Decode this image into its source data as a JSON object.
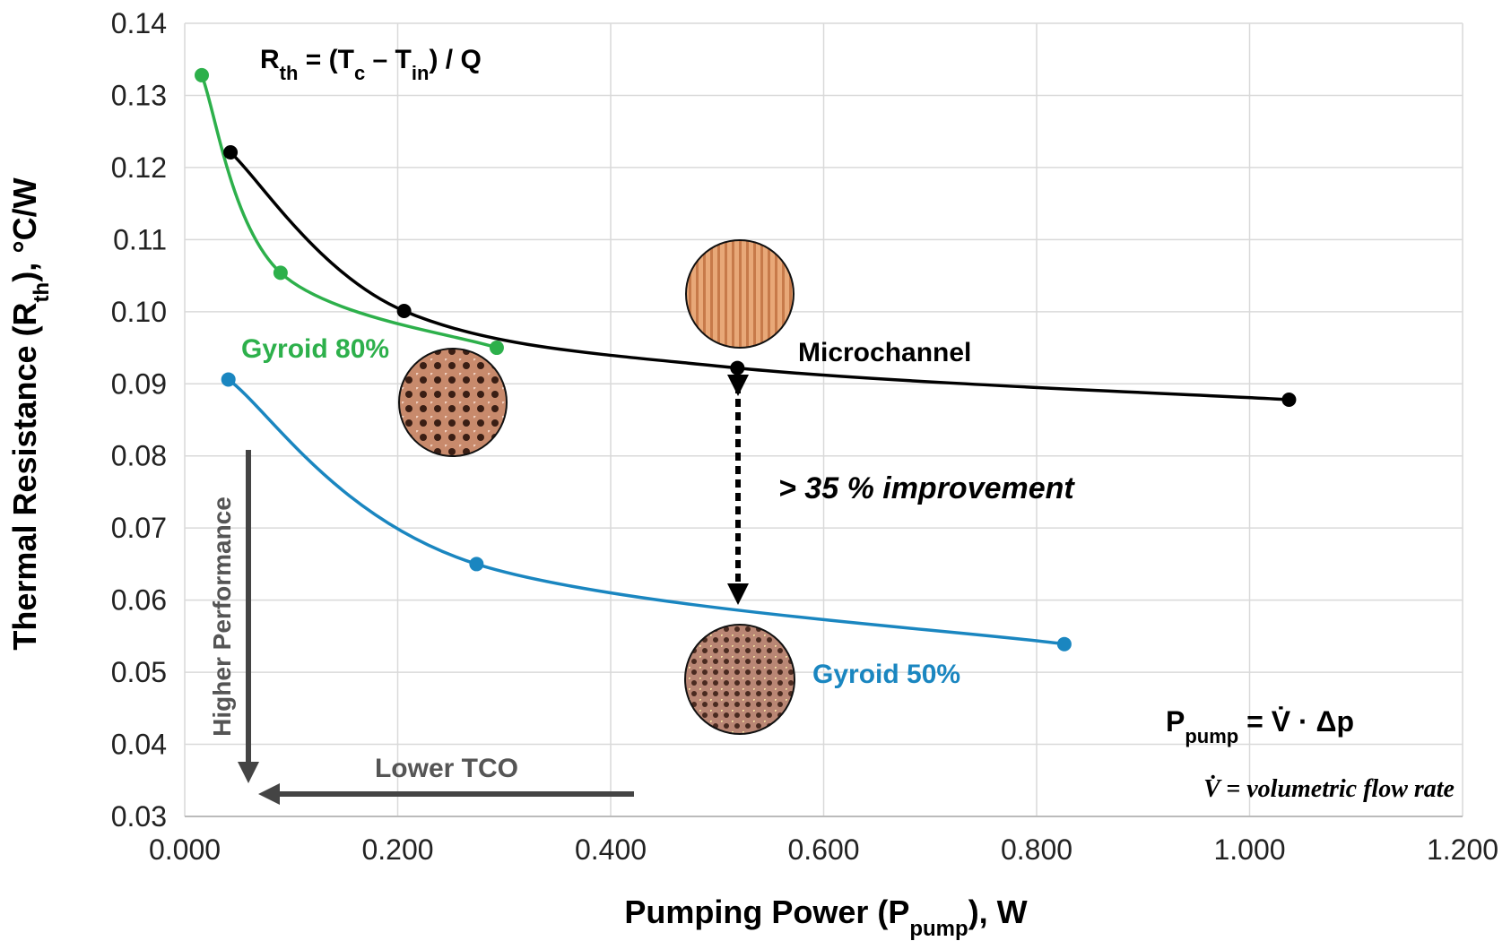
{
  "chart_data": {
    "type": "line",
    "y_label": [
      "Thermal Resistance (R",
      "th",
      "),  °C/W"
    ],
    "x_label": [
      "Pumping Power (P",
      "pump",
      "), W"
    ],
    "xlim": [
      0,
      1.2
    ],
    "xticks": [
      {
        "value": 0,
        "label": "0.000"
      },
      {
        "value": 0.2,
        "label": "0.200"
      },
      {
        "value": 0.4,
        "label": "0.400"
      },
      {
        "value": 0.6,
        "label": "0.600"
      },
      {
        "value": 0.8,
        "label": "0.800"
      },
      {
        "value": 1.0,
        "label": "1.000"
      },
      {
        "value": 1.2,
        "label": "1.200"
      }
    ],
    "ylim": [
      0.03,
      0.14
    ],
    "yticks": [
      0.03,
      0.04,
      0.05,
      0.06,
      0.07,
      0.08,
      0.09,
      {
        "value": 0.1,
        "label": "0.10"
      },
      0.11,
      0.12,
      0.13,
      0.14
    ],
    "grid": true,
    "series": [
      {
        "name": "Gyroid 80%",
        "color": "#2db04b",
        "x": [
          0.016,
          0.09,
          0.293
        ],
        "values": [
          0.1328,
          0.1054,
          0.095
        ]
      },
      {
        "name": "Microchannel",
        "color": "#000000",
        "x": [
          0.043,
          0.206,
          0.519,
          1.037
        ],
        "values": [
          0.1221,
          0.1001,
          0.0922,
          0.0878
        ]
      },
      {
        "name": "Gyroid 50%",
        "color": "#1a86c0",
        "x": [
          0.041,
          0.274,
          0.826
        ],
        "values": [
          0.0906,
          0.065,
          0.0539
        ]
      }
    ],
    "formula_rth": [
      "R",
      "th",
      " = (T",
      "c",
      " – T",
      "in",
      ") / Q"
    ],
    "formula_pump": [
      "P",
      "pump",
      " = V̇  · Δp"
    ],
    "flow_note": "V̇ =  volumetric flow rate",
    "improvement": "> 35 % improvement",
    "higher_performance": "Higher Performance",
    "lower_tco": "Lower TCO"
  }
}
